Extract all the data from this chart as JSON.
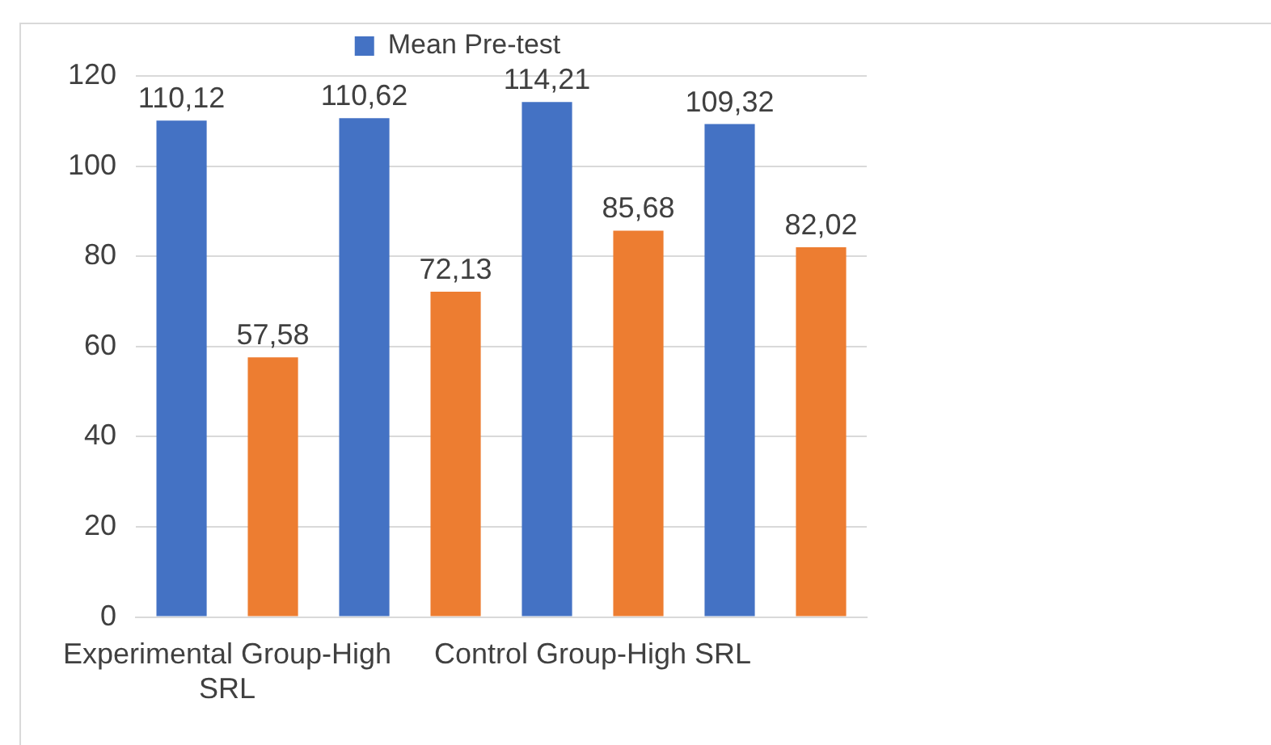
{
  "chart_data": {
    "type": "bar",
    "categories": [
      "Experimental Group-High SRL",
      null,
      "Control Group-High SRL",
      null
    ],
    "series": [
      {
        "name": "Mean Pre-test",
        "color": "#4472c4",
        "values": [
          110.12,
          110.62,
          114.21,
          109.32
        ],
        "value_labels": [
          "110,12",
          "110,62",
          "114,21",
          "109,32"
        ]
      },
      {
        "color": "#ed7d31",
        "values": [
          57.58,
          72.13,
          85.68,
          82.02
        ],
        "value_labels": [
          "57,58",
          "72,13",
          "85,68",
          "82,02"
        ]
      }
    ],
    "ylim": [
      0,
      120
    ],
    "yticks": [
      0,
      20,
      40,
      60,
      80,
      100,
      120
    ],
    "grid": "y",
    "legend": "top"
  }
}
